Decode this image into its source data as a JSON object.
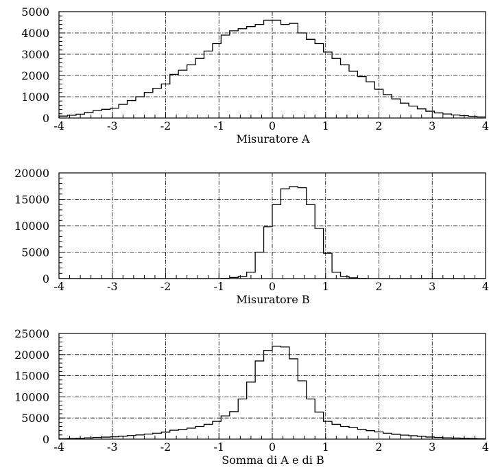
{
  "chart_data": [
    {
      "type": "histogram",
      "xlabel": "Misuratore A",
      "xlim": [
        -4,
        4
      ],
      "ylim": [
        0,
        5000
      ],
      "xticks": [
        -4,
        -3,
        -2,
        -1,
        0,
        1,
        2,
        3,
        4
      ],
      "yticks": [
        0,
        1000,
        2000,
        3000,
        4000,
        5000
      ],
      "grid": true,
      "bin_width": 0.16,
      "bin_edges_start": -4,
      "values": [
        90,
        130,
        180,
        260,
        350,
        410,
        460,
        640,
        820,
        1000,
        1200,
        1400,
        1600,
        2050,
        2250,
        2500,
        2800,
        3150,
        3500,
        3900,
        4100,
        4200,
        4300,
        4400,
        4600,
        4600,
        4400,
        4450,
        4000,
        3700,
        3500,
        3100,
        2800,
        2500,
        2200,
        1950,
        1700,
        1350,
        1100,
        900,
        700,
        560,
        430,
        320,
        240,
        190,
        140,
        110,
        80,
        50
      ]
    },
    {
      "type": "histogram",
      "xlabel": "Misuratore B",
      "xlim": [
        -4,
        4
      ],
      "ylim": [
        0,
        20000
      ],
      "xticks": [
        -4,
        -3,
        -2,
        -1,
        0,
        1,
        2,
        3,
        4
      ],
      "yticks": [
        0,
        5000,
        10000,
        15000,
        20000
      ],
      "grid": true,
      "bin_width": 0.16,
      "bin_edges_start": -4,
      "values": [
        0,
        0,
        0,
        0,
        0,
        0,
        0,
        0,
        0,
        0,
        0,
        0,
        0,
        0,
        0,
        0,
        0,
        0,
        0,
        50,
        200,
        400,
        1200,
        5000,
        9800,
        14000,
        17000,
        17400,
        17200,
        14000,
        9500,
        4800,
        1200,
        400,
        150,
        50,
        0,
        0,
        0,
        0,
        0,
        0,
        0,
        0,
        0,
        0,
        0,
        0,
        0,
        0
      ]
    },
    {
      "type": "histogram",
      "xlabel": "Somma di A e di B",
      "xlim": [
        -4,
        4
      ],
      "ylim": [
        0,
        25000
      ],
      "xticks": [
        -4,
        -3,
        -2,
        -1,
        0,
        1,
        2,
        3,
        4
      ],
      "yticks": [
        0,
        5000,
        10000,
        15000,
        20000,
        25000
      ],
      "grid": true,
      "bin_width": 0.16,
      "bin_edges_start": -4,
      "values": [
        100,
        150,
        200,
        300,
        400,
        480,
        560,
        700,
        850,
        1000,
        1200,
        1400,
        1650,
        2100,
        2300,
        2600,
        3000,
        3500,
        4200,
        5500,
        6500,
        9500,
        13500,
        18500,
        21000,
        22000,
        21800,
        19000,
        13800,
        9500,
        6400,
        4200,
        3500,
        3000,
        2700,
        2300,
        2000,
        1700,
        1400,
        1150,
        950,
        800,
        650,
        500,
        400,
        300,
        250,
        200,
        150,
        100
      ]
    }
  ]
}
